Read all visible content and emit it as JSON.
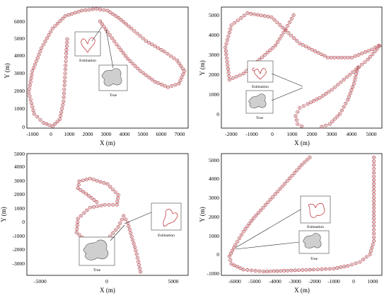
{
  "figure": {
    "panels": [
      {
        "id": "top-left",
        "xlabel": "X (m)",
        "ylabel": "Y (m)",
        "xticks": [
          "-1000",
          "0",
          "1000",
          "2000",
          "3000",
          "4000",
          "5000",
          "6000",
          "7000"
        ],
        "yticks": [
          "0",
          "1000",
          "2000",
          "3000",
          "4000",
          "5000",
          "6000"
        ],
        "inset_estimation_label": "Estimation",
        "inset_true_label": "True"
      },
      {
        "id": "top-right",
        "xlabel": "X (m)",
        "ylabel": "Y (m)",
        "xticks": [
          "-2000",
          "-1000",
          "0",
          "1000",
          "2000",
          "3000",
          "4000",
          "5000"
        ],
        "yticks": [
          "0",
          "1000",
          "2000",
          "3000",
          "4000",
          "5000"
        ],
        "inset_estimation_label": "Estimation",
        "inset_true_label": "True"
      },
      {
        "id": "bottom-left",
        "xlabel": "X (m)",
        "ylabel": "Y (m)",
        "xticks": [
          "-5000",
          "0",
          "5000"
        ],
        "yticks": [
          "-3000",
          "-2000",
          "-1000",
          "0",
          "1000",
          "2000",
          "3000",
          "4000",
          "5000"
        ],
        "inset_estimation_label": "Estimation",
        "inset_true_label": "True"
      },
      {
        "id": "bottom-right",
        "xlabel": "X (m)",
        "ylabel": "Y (m)",
        "xticks": [
          "-6000",
          "-5000",
          "-4000",
          "-3000",
          "-2000",
          "-1000",
          "0",
          "1000"
        ],
        "yticks": [
          "-1000",
          "0",
          "1000",
          "2000",
          "3000",
          "4000",
          "5000"
        ],
        "inset_estimation_label": "Estimation",
        "inset_true_label": "True"
      }
    ]
  },
  "chart_data": [
    {
      "type": "scatter",
      "xlabel": "X (m)",
      "ylabel": "Y (m)",
      "xlim": [
        -1200,
        7600
      ],
      "ylim": [
        0,
        6800
      ],
      "series": [
        {
          "x": [
            1000,
            950,
            900,
            850,
            800,
            600,
            200,
            -300,
            -800,
            -1100,
            -900,
            -400,
            200,
            900,
            1800,
            2600,
            3200,
            3800,
            4500,
            5300,
            6300,
            7000,
            7400,
            7100,
            6500,
            5800,
            5000,
            4300,
            3700,
            3200,
            2800
          ],
          "y": [
            5000,
            4200,
            3300,
            2400,
            1500,
            500,
            100,
            300,
            800,
            2000,
            3200,
            4500,
            5600,
            6300,
            6600,
            6700,
            6600,
            6200,
            5600,
            4900,
            4300,
            3800,
            3200,
            2500,
            2300,
            2600,
            3200,
            3900,
            4700,
            5400,
            6000
          ]
        }
      ],
      "grid": false
    },
    {
      "type": "scatter",
      "xlabel": "X (m)",
      "ylabel": "Y (m)",
      "xlim": [
        -2500,
        5500
      ],
      "ylim": [
        -700,
        5300
      ],
      "series": [
        {
          "x": [
            1100,
            700,
            200,
            -600,
            -1400,
            -2100,
            -2300,
            -2000,
            -1200,
            0,
            1400,
            2800,
            4000,
            5000,
            5500,
            4800,
            4200,
            3600,
            3000,
            2400,
            1800,
            1400,
            1200,
            1300,
            1700,
            2300,
            2900,
            3400,
            3800,
            4100,
            4300
          ],
          "y": [
            4900,
            4200,
            3400,
            2700,
            2000,
            1700,
            3300,
            4400,
            5000,
            4800,
            3500,
            2800,
            2800,
            3200,
            3500,
            2700,
            2200,
            1700,
            1200,
            800,
            500,
            300,
            -100,
            -500,
            -700,
            -700,
            -500,
            0,
            700,
            1500,
            2300
          ]
        }
      ],
      "grid": false
    },
    {
      "type": "scatter",
      "xlabel": "X (m)",
      "ylabel": "Y (m)",
      "xlim": [
        -6000,
        6000
      ],
      "ylim": [
        -3800,
        5000
      ],
      "series": [
        {
          "x": [
            -800,
            -1600,
            -2200,
            -2100,
            -1300,
            0,
            800,
            700,
            -200,
            -1300,
            -2200,
            -2300,
            -1500,
            0,
            800,
            1200,
            1500,
            1800,
            2100,
            2300,
            2400,
            2500
          ],
          "y": [
            1500,
            2100,
            2500,
            3000,
            3200,
            2800,
            2000,
            1300,
            1300,
            1100,
            300,
            -700,
            -1400,
            -1200,
            -300,
            500,
            0,
            -1000,
            -2000,
            -2800,
            -3300,
            -3800
          ]
        }
      ],
      "grid": false
    },
    {
      "type": "scatter",
      "xlabel": "X (m)",
      "ylabel": "Y (m)",
      "xlim": [
        -6600,
        1400
      ],
      "ylim": [
        -1200,
        5200
      ],
      "series": [
        {
          "x": [
            -2200,
            -2600,
            -3200,
            -3800,
            -4400,
            -5000,
            -5500,
            -5900,
            -6200,
            -6100,
            -5500,
            -4500,
            -3300,
            -2000,
            -1000,
            -300,
            300,
            800,
            1000,
            1000,
            1000,
            1000,
            1000
          ],
          "y": [
            5000,
            4600,
            3900,
            3200,
            2500,
            1800,
            1100,
            400,
            -200,
            -600,
            -900,
            -1000,
            -950,
            -900,
            -850,
            -700,
            -500,
            -100,
            600,
            1600,
            2700,
            3800,
            5000
          ]
        }
      ],
      "grid": false
    }
  ]
}
